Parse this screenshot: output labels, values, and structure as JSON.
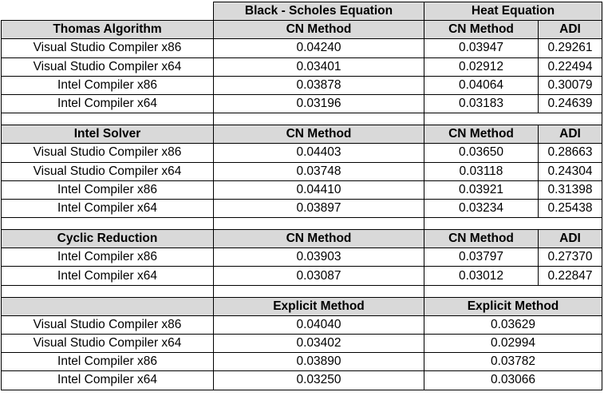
{
  "header": {
    "black_scholes": "Black - Scholes Equation",
    "heat": "Heat Equation"
  },
  "sections": [
    {
      "title": "Thomas Algorithm",
      "cols": [
        "CN Method",
        "CN Method",
        "ADI"
      ],
      "rows": [
        [
          "Visual Studio Compiler x86",
          "0.04240",
          "0.03947",
          "0.29261"
        ],
        [
          "Visual Studio Compiler x64",
          "0.03401",
          "0.02912",
          "0.22494"
        ],
        [
          "Intel Compiler x86",
          "0.03878",
          "0.04064",
          "0.30079"
        ],
        [
          "Intel Compiler x64",
          "0.03196",
          "0.03183",
          "0.24639"
        ]
      ]
    },
    {
      "title": "Intel Solver",
      "cols": [
        "CN Method",
        "CN Method",
        "ADI"
      ],
      "rows": [
        [
          "Visual Studio Compiler x86",
          "0.04403",
          "0.03650",
          "0.28663"
        ],
        [
          "Visual Studio Compiler x64",
          "0.03748",
          "0.03118",
          "0.24304"
        ],
        [
          "Intel Compiler x86",
          "0.04410",
          "0.03921",
          "0.31398"
        ],
        [
          "Intel Compiler x64",
          "0.03897",
          "0.03234",
          "0.25438"
        ]
      ]
    },
    {
      "title": "Cyclic Reduction",
      "cols": [
        "CN Method",
        "CN Method",
        "ADI"
      ],
      "rows": [
        [
          "Intel Compiler x86",
          "0.03903",
          "0.03797",
          "0.27370"
        ],
        [
          "Intel Compiler x64",
          "0.03087",
          "0.03012",
          "0.22847"
        ]
      ]
    },
    {
      "title": "",
      "cols": [
        "Explicit Method",
        "Explicit Method"
      ],
      "rows": [
        [
          "Visual Studio Compiler x86",
          "0.04040",
          "0.03629"
        ],
        [
          "Visual Studio Compiler x64",
          "0.03402",
          "0.02994"
        ],
        [
          "Intel Compiler x86",
          "0.03890",
          "0.03782"
        ],
        [
          "Intel Compiler x64",
          "0.03250",
          "0.03066"
        ]
      ]
    }
  ]
}
